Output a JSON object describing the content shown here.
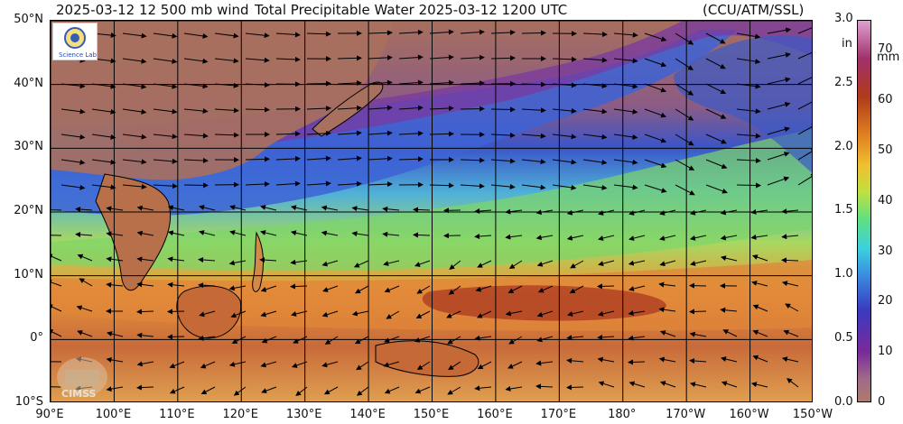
{
  "header": {
    "wind_label": "2025-03-12 12 500 mb wind",
    "title": "Total Precipitable Water  2025-03-12 1200 UTC",
    "credit": "(CCU/ATM/SSL)"
  },
  "map": {
    "lon_range": [
      90,
      210
    ],
    "lat_range": [
      -10,
      50
    ],
    "lat_labels": [
      "50°N",
      "40°N",
      "30°N",
      "20°N",
      "10°N",
      "0°",
      "10°S"
    ],
    "lon_labels": [
      "90°E",
      "100°E",
      "110°E",
      "120°E",
      "130°E",
      "140°E",
      "150°E",
      "160°E",
      "170°E",
      "180°",
      "170°W",
      "160°W",
      "150°W"
    ]
  },
  "colorbar": {
    "in_unit": "in",
    "mm_unit": "mm",
    "in_ticks": [
      "3.0",
      "2.5",
      "2.0",
      "1.5",
      "1.0",
      "0.5",
      "0.0"
    ],
    "mm_ticks": [
      "70",
      "60",
      "50",
      "40",
      "30",
      "20",
      "10",
      "0"
    ],
    "range_mm": [
      0,
      76
    ]
  },
  "logos": {
    "top_logo_text": "Science Lab",
    "bottom_logo_text": "CIMSS"
  },
  "colors": {
    "dry_land": "#b07a6a",
    "very_dry": "#8a3a9a",
    "dry": "#4060d0",
    "moist": "#40c0c0",
    "wet": "#e0a040",
    "very_wet": "#b04020"
  }
}
